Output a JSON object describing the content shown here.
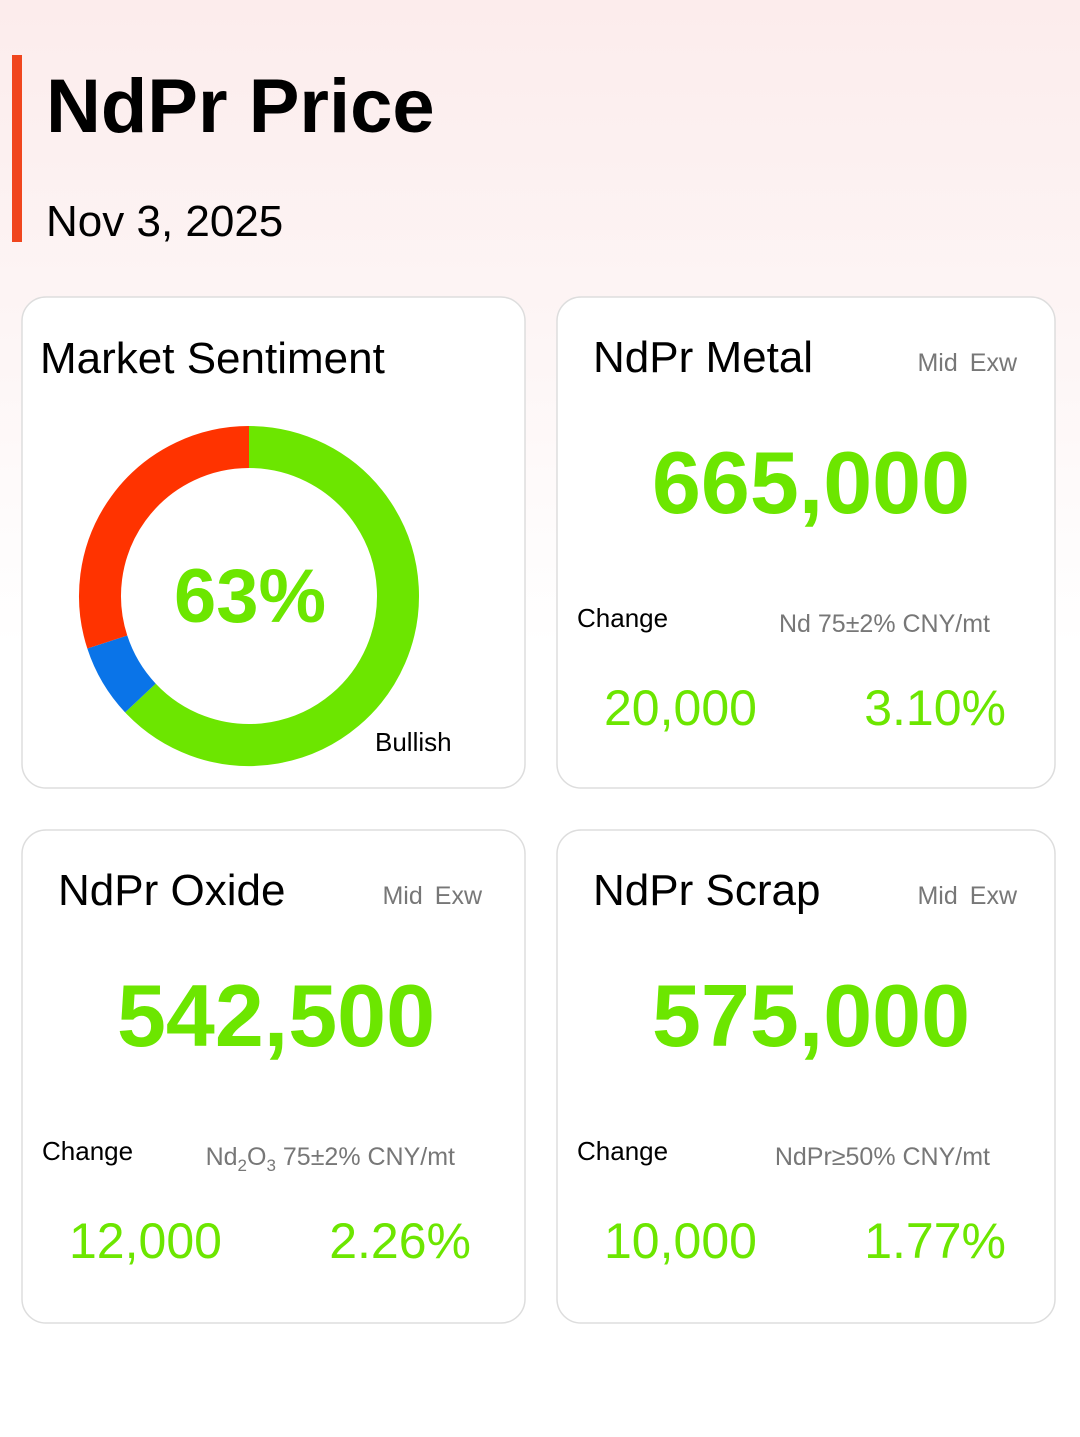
{
  "header": {
    "title": "NdPr Price",
    "date": "Nov 3, 2025"
  },
  "sentiment": {
    "type": "pie",
    "title": "Market Sentiment",
    "segments": [
      {
        "name": "Bullish",
        "color": "#6ce600",
        "value": 63,
        "value_label": "63%"
      },
      {
        "color": "#0a74e8",
        "value": 7
      },
      {
        "color": "#ff3300",
        "value": 30
      }
    ]
  },
  "cards": [
    {
      "title": "NdPr Metal",
      "tags": [
        "Mid",
        "Exw"
      ],
      "price": "665,000",
      "change_label": "Change",
      "spec": [
        {
          "text": "Nd 75±2% CNY/mt"
        }
      ],
      "change": "20,000",
      "change_pct": "3.10%"
    },
    {
      "title": "NdPr Oxide",
      "tags": [
        "Mid",
        "Exw"
      ],
      "price": "542,500",
      "change_label": "Change",
      "spec": [
        {
          "text": "Nd"
        },
        {
          "text": "2",
          "sub": true
        },
        {
          "text": "O"
        },
        {
          "text": "3",
          "sub": true
        },
        {
          "text": " 75±2% CNY/mt"
        }
      ],
      "change": "12,000",
      "change_pct": "2.26%"
    },
    {
      "title": "NdPr Scrap",
      "tags": [
        "Mid",
        "Exw"
      ],
      "price": "575,000",
      "change_label": "Change",
      "spec": [
        {
          "text": "NdPr≥50% CNY/mt"
        }
      ],
      "change": "10,000",
      "change_pct": "1.77%"
    }
  ]
}
